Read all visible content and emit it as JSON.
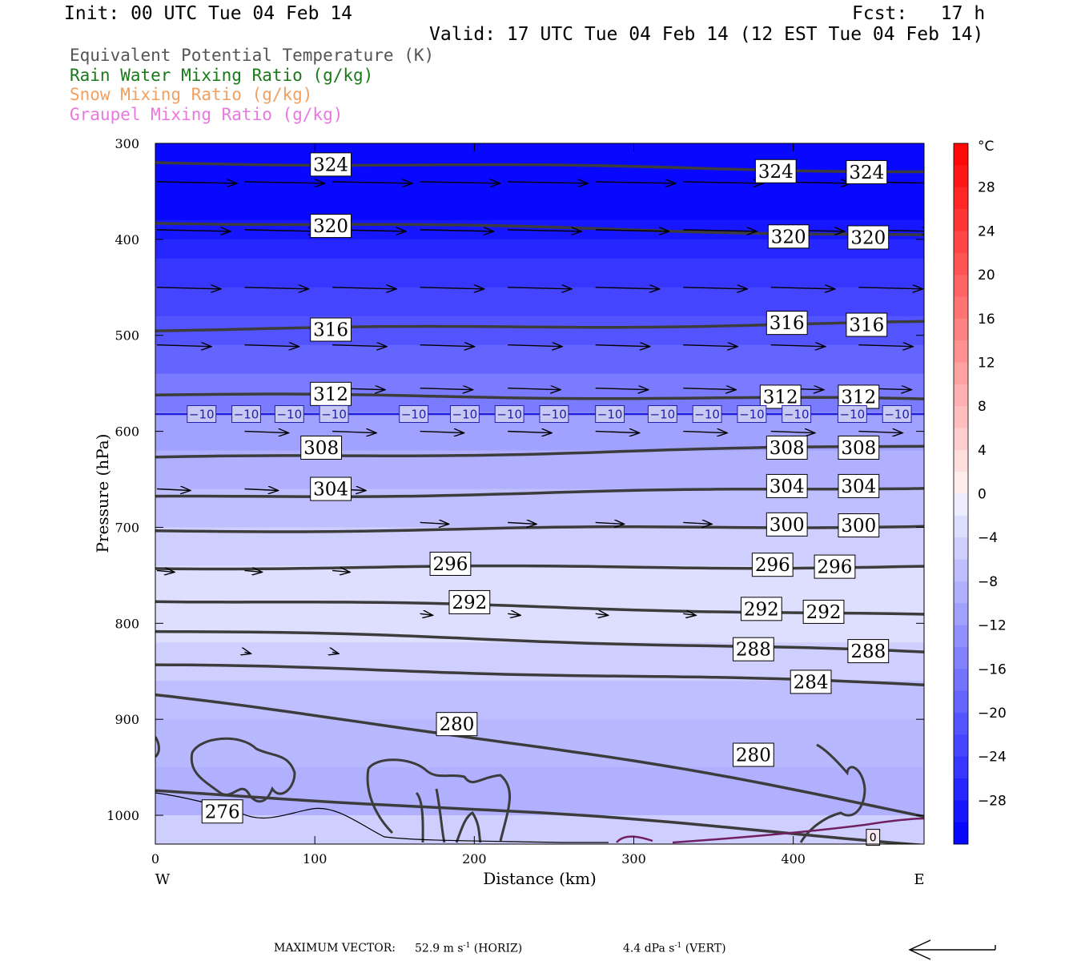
{
  "header": {
    "init": "Init: 00 UTC Tue 04 Feb 14",
    "fcst": "Fcst:   17 h",
    "valid": "Valid: 17 UTC Tue 04 Feb 14 (12 EST Tue 04 Feb 14)"
  },
  "legend": [
    {
      "text": "Equivalent Potential Temperature (K)",
      "color": "#555555"
    },
    {
      "text": "Rain Water Mixing Ratio (g/kg)",
      "color": "#1a7a1a"
    },
    {
      "text": "Snow Mixing Ratio (g/kg)",
      "color": "#f0a060"
    },
    {
      "text": "Graupel Mixing Ratio (g/kg)",
      "color": "#e878e0"
    }
  ],
  "footer": {
    "max_vector_label": "MAXIMUM VECTOR:",
    "horiz": "52.9 m s",
    "horiz_unit": "(HORIZ)",
    "vert": "4.4 dPa s",
    "vert_unit": "(VERT)",
    "exponent": "-1"
  },
  "chart_data": {
    "type": "contour",
    "xlabel": "Distance (km)",
    "ylabel": "Pressure (hPa)",
    "xlim": [
      0,
      482
    ],
    "ylim": [
      1030,
      300
    ],
    "xticks": [
      0,
      100,
      200,
      300,
      400
    ],
    "yticks": [
      300,
      400,
      500,
      600,
      700,
      800,
      900,
      1000
    ],
    "x_end_labels": {
      "left": "W",
      "right": "E"
    },
    "colorbar": {
      "unit": "°C",
      "tick_labels": [
        "28",
        "24",
        "20",
        "16",
        "12",
        "8",
        "4",
        "0",
        "−4",
        "−8",
        "−12",
        "−16",
        "−20",
        "−24",
        "−28"
      ],
      "tick_values": [
        28,
        24,
        20,
        16,
        12,
        8,
        4,
        0,
        -4,
        -8,
        -12,
        -16,
        -20,
        -24,
        -28
      ],
      "range": [
        -32,
        32
      ],
      "step": 2
    },
    "temperature_fill": [
      {
        "p": 300,
        "t": -31
      },
      {
        "p": 350,
        "t": -31
      },
      {
        "p": 380,
        "t": -29
      },
      {
        "p": 400,
        "t": -27
      },
      {
        "p": 420,
        "t": -25
      },
      {
        "p": 450,
        "t": -23
      },
      {
        "p": 480,
        "t": -21
      },
      {
        "p": 510,
        "t": -19
      },
      {
        "p": 540,
        "t": -16
      },
      {
        "p": 580,
        "t": -11
      },
      {
        "p": 620,
        "t": -9
      },
      {
        "p": 660,
        "t": -7
      },
      {
        "p": 700,
        "t": -5
      },
      {
        "p": 740,
        "t": -3
      },
      {
        "p": 780,
        "t": -3
      },
      {
        "p": 820,
        "t": -5
      },
      {
        "p": 860,
        "t": -7
      },
      {
        "p": 900,
        "t": -8
      },
      {
        "p": 950,
        "t": -9
      },
      {
        "p": 1000,
        "t": -5
      },
      {
        "p": 1030,
        "t": 1
      }
    ],
    "theta_e_contours": [
      {
        "label": "324",
        "p_left": 320,
        "p_right": 329,
        "labels_at": [
          [
            110,
            322
          ],
          [
            389,
            329
          ],
          [
            446,
            330
          ]
        ]
      },
      {
        "label": "320",
        "p_left": 382,
        "p_right": 396,
        "labels_at": [
          [
            110,
            386
          ],
          [
            397,
            397
          ],
          [
            447,
            398
          ]
        ]
      },
      {
        "label": "316",
        "p_left": 494,
        "p_right": 487,
        "labels_at": [
          [
            110,
            494
          ],
          [
            396,
            487
          ],
          [
            446,
            489
          ]
        ]
      },
      {
        "label": "312",
        "p_left": 562,
        "p_right": 567,
        "labels_at": [
          [
            110,
            561
          ],
          [
            392,
            564
          ],
          [
            441,
            564
          ]
        ]
      },
      {
        "label": "308",
        "p_left": 628,
        "p_right": 615,
        "labels_at": [
          [
            104,
            617
          ],
          [
            396,
            617
          ],
          [
            441,
            617
          ]
        ]
      },
      {
        "label": "304",
        "p_left": 669,
        "p_right": 658,
        "labels_at": [
          [
            110,
            660
          ],
          [
            396,
            657
          ],
          [
            441,
            657
          ]
        ]
      },
      {
        "label": "300",
        "p_left": 704,
        "p_right": 698,
        "labels_at": [
          [
            396,
            697
          ],
          [
            441,
            698
          ]
        ]
      },
      {
        "label": "296",
        "p_left": 742,
        "p_right": 741,
        "labels_at": [
          [
            185,
            738
          ],
          [
            387,
            739
          ],
          [
            426,
            741
          ]
        ]
      },
      {
        "label": "292",
        "p_left": 776,
        "p_right": 792,
        "labels_at": [
          [
            197,
            778
          ],
          [
            380,
            785
          ],
          [
            419,
            788
          ]
        ]
      },
      {
        "label": "288",
        "p_left": 808,
        "p_right": 831,
        "labels_at": [
          [
            375,
            827
          ],
          [
            447,
            829
          ]
        ]
      },
      {
        "label": "284",
        "p_left": 844,
        "p_right": 864,
        "labels_at": [
          [
            411,
            861
          ]
        ]
      },
      {
        "label": "280",
        "p_left": 876,
        "p_right": 1000,
        "labels_at": [
          [
            189,
            905
          ],
          [
            375,
            937
          ]
        ]
      },
      {
        "label": "276",
        "p_left": 975,
        "p_right": 1030,
        "labels_at": [
          [
            42,
            996
          ]
        ]
      }
    ],
    "isotherm_minus10": {
      "label": "−10",
      "p": 582,
      "labels_at_x": [
        29,
        57,
        84,
        112,
        162,
        194,
        222,
        250,
        285,
        318,
        346,
        374,
        402,
        437,
        465
      ]
    },
    "isotherm_0": {
      "label": "0",
      "labels_at": [
        [
          450,
          1023
        ]
      ]
    },
    "max_vector_horiz": 52.9,
    "max_vector_vert": 4.4
  }
}
